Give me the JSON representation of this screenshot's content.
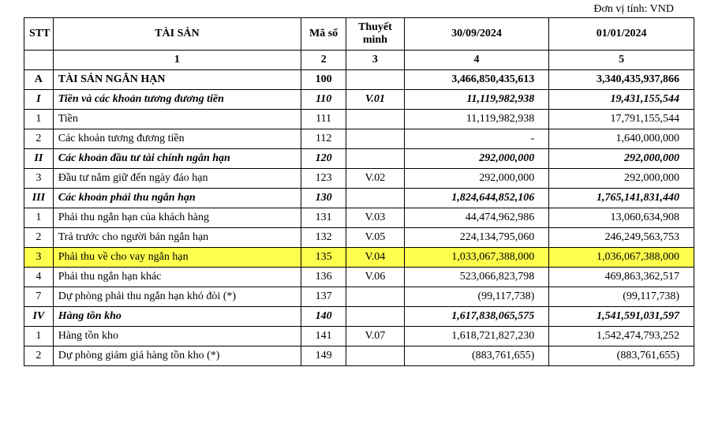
{
  "unit_label": "Đơn vị tính: VND",
  "headers": {
    "stt": "STT",
    "name": "TÀI SẢN",
    "code": "Mã số",
    "note": "Thuyết minh",
    "col1": "30/09/2024",
    "col2": "01/01/2024"
  },
  "subheaders": {
    "stt": "",
    "name": "1",
    "code": "2",
    "note": "3",
    "col1": "4",
    "col2": "5"
  },
  "rows": [
    {
      "stt": "A",
      "name": "TÀI SẢN NGẮN HẠN",
      "code": "100",
      "note": "",
      "v1": "3,466,850,435,613",
      "v2": "3,340,435,937,866",
      "style": "bold",
      "highlight": false
    },
    {
      "stt": "I",
      "name": "Tiền và các khoản tương đương tiền",
      "code": "110",
      "note": "V.01",
      "v1": "11,119,982,938",
      "v2": "19,431,155,544",
      "style": "bi",
      "highlight": false
    },
    {
      "stt": "1",
      "name": "Tiền",
      "code": "111",
      "note": "",
      "v1": "11,119,982,938",
      "v2": "17,791,155,544",
      "style": "normal",
      "highlight": false
    },
    {
      "stt": "2",
      "name": "Các khoản tương đương tiền",
      "code": "112",
      "note": "",
      "v1": "-",
      "v2": "1,640,000,000",
      "style": "normal",
      "highlight": false
    },
    {
      "stt": "II",
      "name": "Các khoản đầu tư tài chính ngắn hạn",
      "code": "120",
      "note": "",
      "v1": "292,000,000",
      "v2": "292,000,000",
      "style": "bi",
      "highlight": false
    },
    {
      "stt": "3",
      "name": "Đầu tư nắm giữ đến ngày đáo hạn",
      "code": "123",
      "note": "V.02",
      "v1": "292,000,000",
      "v2": "292,000,000",
      "style": "normal",
      "highlight": false
    },
    {
      "stt": "III",
      "name": "Các khoản phải thu ngắn hạn",
      "code": "130",
      "note": "",
      "v1": "1,824,644,852,106",
      "v2": "1,765,141,831,440",
      "style": "bi",
      "highlight": false
    },
    {
      "stt": "1",
      "name": "Phải thu ngắn hạn của khách hàng",
      "code": "131",
      "note": "V.03",
      "v1": "44,474,962,986",
      "v2": "13,060,634,908",
      "style": "normal",
      "highlight": false
    },
    {
      "stt": "2",
      "name": "Trả trước cho người bán ngắn hạn",
      "code": "132",
      "note": "V.05",
      "v1": "224,134,795,060",
      "v2": "246,249,563,753",
      "style": "normal",
      "highlight": false
    },
    {
      "stt": "3",
      "name": "Phải thu về cho vay ngắn hạn",
      "code": "135",
      "note": "V.04",
      "v1": "1,033,067,388,000",
      "v2": "1,036,067,388,000",
      "style": "normal",
      "highlight": true
    },
    {
      "stt": "4",
      "name": "Phải thu ngắn hạn khác",
      "code": "136",
      "note": "V.06",
      "v1": "523,066,823,798",
      "v2": "469,863,362,517",
      "style": "normal",
      "highlight": false
    },
    {
      "stt": "7",
      "name": "Dự phòng phải thu ngắn hạn khó đòi (*)",
      "code": "137",
      "note": "",
      "v1": "(99,117,738)",
      "v2": "(99,117,738)",
      "style": "normal",
      "highlight": false
    },
    {
      "stt": "IV",
      "name": "Hàng tồn kho",
      "code": "140",
      "note": "",
      "v1": "1,617,838,065,575",
      "v2": "1,541,591,031,597",
      "style": "bi",
      "highlight": false
    },
    {
      "stt": "1",
      "name": "Hàng tồn kho",
      "code": "141",
      "note": "V.07",
      "v1": "1,618,721,827,230",
      "v2": "1,542,474,793,252",
      "style": "normal",
      "highlight": false
    },
    {
      "stt": "2",
      "name": "Dự phòng giảm giá hàng tồn kho (*)",
      "code": "149",
      "note": "",
      "v1": "(883,761,655)",
      "v2": "(883,761,655)",
      "style": "normal",
      "highlight": false
    }
  ],
  "colors": {
    "highlight": "#ffff4d",
    "border": "#000000",
    "text": "#000000",
    "background": "#ffffff"
  }
}
